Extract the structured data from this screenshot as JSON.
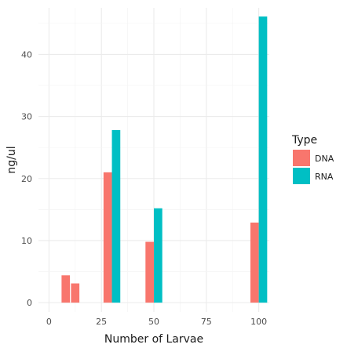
{
  "chart_data": {
    "type": "bar",
    "xlabel": "Number of Larvae",
    "ylabel": "ng/ul",
    "xlim": [
      -5,
      105
    ],
    "ylim": [
      -1.5,
      47.5
    ],
    "xticks": [
      0,
      25,
      50,
      75,
      100
    ],
    "yticks": [
      0,
      10,
      20,
      30,
      40
    ],
    "grid": true,
    "legend": {
      "title": "Type",
      "placement": "right",
      "entries": [
        {
          "label": "DNA",
          "color": "#F8766D"
        },
        {
          "label": "RNA",
          "color": "#00BFC4"
        }
      ]
    },
    "bar_width": 4,
    "series": [
      {
        "name": "DNA",
        "color": "#F8766D",
        "points": [
          {
            "x": 8,
            "y": 4.4
          },
          {
            "x": 12.5,
            "y": 3.1
          },
          {
            "x": 28,
            "y": 21.0
          },
          {
            "x": 48,
            "y": 9.8
          },
          {
            "x": 98,
            "y": 12.9
          }
        ]
      },
      {
        "name": "RNA",
        "color": "#00BFC4",
        "points": [
          {
            "x": 32,
            "y": 27.8
          },
          {
            "x": 52,
            "y": 15.2
          },
          {
            "x": 102,
            "y": 46.1
          }
        ]
      }
    ]
  }
}
